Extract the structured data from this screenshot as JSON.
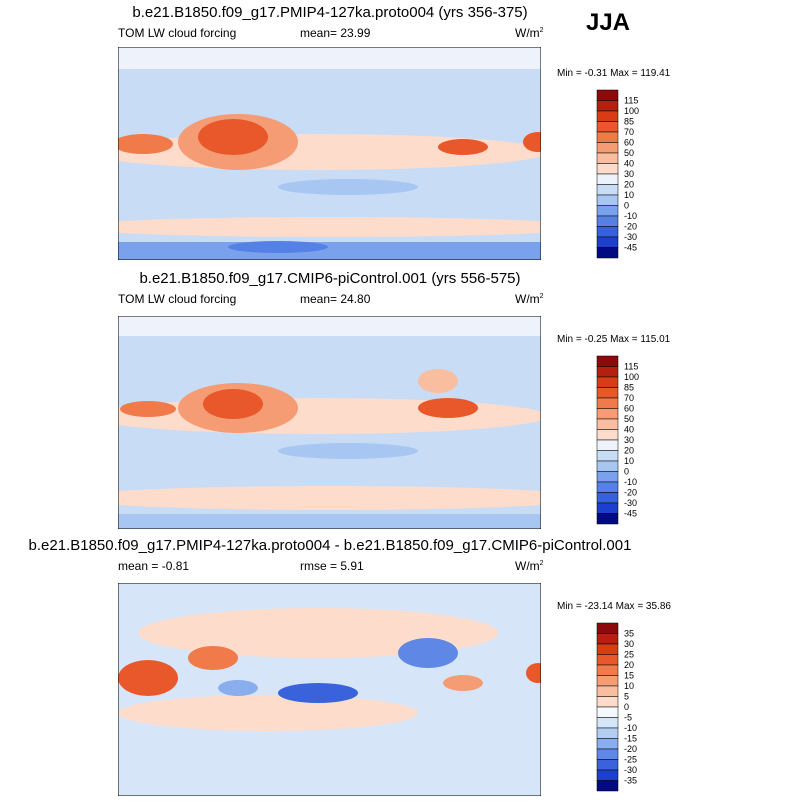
{
  "header": {
    "season": "JJA"
  },
  "panels": [
    {
      "title": "b.e21.B1850.f09_g17.PMIP4-127ka.proto004 (yrs 356-375)",
      "left": "TOM LW cloud forcing",
      "center": "mean=  23.99",
      "unit": {
        "base": "W/m",
        "sup": "2"
      },
      "minmax": "Min =  -0.31 Max = 119.41",
      "levels": [
        115,
        100,
        85,
        70,
        60,
        50,
        40,
        30,
        20,
        10,
        0,
        -10,
        -20,
        -30,
        -45
      ],
      "colors": [
        "#8c0a0a",
        "#b41f0f",
        "#d73c16",
        "#e8582a",
        "#f07a4a",
        "#f59c75",
        "#f9bd9f",
        "#fddccb",
        "#eef3fb",
        "#c8dcf6",
        "#a8c6f2",
        "#7aa2ec",
        "#5580e6",
        "#3561db",
        "#1d3fcf",
        "#020a80"
      ]
    },
    {
      "title": "b.e21.B1850.f09_g17.CMIP6-piControl.001 (yrs 556-575)",
      "left": "TOM LW cloud forcing",
      "center": "mean=  24.80",
      "unit": {
        "base": "W/m",
        "sup": "2"
      },
      "minmax": "Min =  -0.25 Max = 115.01",
      "levels": [
        115,
        100,
        85,
        70,
        60,
        50,
        40,
        30,
        20,
        10,
        0,
        -10,
        -20,
        -30,
        -45
      ],
      "colors": [
        "#8c0a0a",
        "#b41f0f",
        "#d73c16",
        "#e8582a",
        "#f07a4a",
        "#f59c75",
        "#f9bd9f",
        "#fddccb",
        "#eef3fb",
        "#c8dcf6",
        "#a8c6f2",
        "#7aa2ec",
        "#5580e6",
        "#3561db",
        "#1d3fcf",
        "#020a80"
      ]
    },
    {
      "title": "b.e21.B1850.f09_g17.PMIP4-127ka.proto004 - b.e21.B1850.f09_g17.CMIP6-piControl.001",
      "left": "mean =  -0.81",
      "center": "rmse =  5.91",
      "unit": {
        "base": "W/m",
        "sup": "2"
      },
      "minmax": "Min = -23.14 Max =  35.86",
      "levels": [
        35,
        30,
        25,
        20,
        15,
        10,
        5,
        0,
        -5,
        -10,
        -15,
        -20,
        -25,
        -30,
        -35
      ],
      "colors": [
        "#8c0a0a",
        "#b41f0f",
        "#d73c16",
        "#e8582a",
        "#f07a4a",
        "#f59c75",
        "#f9bd9f",
        "#fddccb",
        "#f4f8fd",
        "#d6e6f8",
        "#b3cdf3",
        "#8aadee",
        "#5f88e6",
        "#3a63db",
        "#1d3fcf",
        "#020a80"
      ]
    }
  ]
}
